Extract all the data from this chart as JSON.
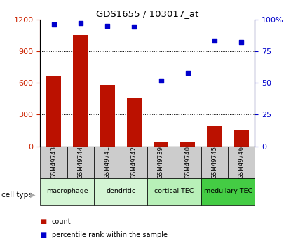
{
  "title": "GDS1655 / 103017_at",
  "samples": [
    "GSM49743",
    "GSM49744",
    "GSM49741",
    "GSM49742",
    "GSM49739",
    "GSM49740",
    "GSM49745",
    "GSM49746"
  ],
  "counts": [
    670,
    1050,
    580,
    460,
    40,
    45,
    195,
    160
  ],
  "percentiles": [
    96,
    97,
    95,
    94,
    52,
    58,
    83,
    82
  ],
  "cell_types": [
    {
      "label": "macrophage",
      "start": 0,
      "end": 2,
      "color": "#d4f5d4"
    },
    {
      "label": "dendritic",
      "start": 2,
      "end": 4,
      "color": "#d4f5d4"
    },
    {
      "label": "cortical TEC",
      "start": 4,
      "end": 6,
      "color": "#b8f0b8"
    },
    {
      "label": "medullary TEC",
      "start": 6,
      "end": 8,
      "color": "#44cc44"
    }
  ],
  "bar_color": "#bb1100",
  "scatter_color": "#0000cc",
  "left_ylim": [
    0,
    1200
  ],
  "left_yticks": [
    0,
    300,
    600,
    900,
    1200
  ],
  "right_ylim": [
    0,
    100
  ],
  "right_yticks": [
    0,
    25,
    50,
    75,
    100
  ],
  "right_yticklabels": [
    "0",
    "25",
    "50",
    "75",
    "100%"
  ],
  "tick_color_left": "#cc2200",
  "tick_color_right": "#0000cc",
  "sample_box_color": "#cccccc",
  "grid_yticks": [
    300,
    600,
    900
  ]
}
